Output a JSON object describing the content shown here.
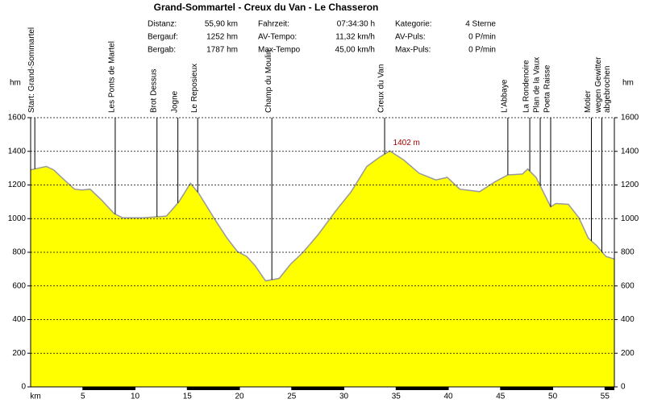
{
  "chart_data": {
    "type": "area",
    "title": "Grand-Sommartel - Creux du Van - Le Chasseron",
    "stats": [
      [
        {
          "label": "Distanz:",
          "value": "55,90 km"
        },
        {
          "label": "Bergauf:",
          "value": "1252 hm"
        },
        {
          "label": "Bergab:",
          "value": "1787 hm"
        }
      ],
      [
        {
          "label": "Fahrzeit:",
          "value": "07:34:30 h"
        },
        {
          "label": "AV-Tempo:",
          "value": "11,32 km/h"
        },
        {
          "label": "Max-Tempo",
          "value": "45,00 km/h"
        }
      ],
      [
        {
          "label": "Kategorie:",
          "value": "4 Sterne"
        },
        {
          "label": "AV-Puls:",
          "value": "0 P/min"
        },
        {
          "label": "Max-Puls:",
          "value": "0 P/min"
        }
      ]
    ],
    "x_label": "km",
    "y_label": "hm",
    "color": "#ffff00",
    "line_color": "#999999",
    "x": [
      0,
      1.5,
      2.2,
      3.4,
      4.2,
      4.9,
      5.7,
      6.8,
      8.0,
      8.8,
      10.7,
      13.0,
      14.2,
      15.3,
      16.1,
      17.6,
      18.8,
      19.8,
      20.7,
      21.5,
      22.5,
      23.8,
      24.9,
      26.1,
      27.6,
      29.2,
      30.7,
      32.2,
      33.4,
      34.4,
      35.7,
      37.2,
      38.8,
      39.9,
      41.1,
      43.0,
      44.5,
      45.7,
      47.1,
      47.6,
      48.4,
      49.8,
      50.3,
      51.5,
      52.5,
      53.4,
      54.2,
      55.1,
      55.9
    ],
    "values": [
      1290,
      1310,
      1290,
      1220,
      1175,
      1170,
      1175,
      1110,
      1030,
      1005,
      1005,
      1015,
      1100,
      1210,
      1150,
      1000,
      885,
      805,
      775,
      720,
      630,
      645,
      730,
      800,
      910,
      1045,
      1160,
      1310,
      1365,
      1402,
      1350,
      1270,
      1230,
      1245,
      1175,
      1160,
      1220,
      1260,
      1265,
      1295,
      1245,
      1070,
      1090,
      1085,
      1005,
      885,
      840,
      775,
      760
    ],
    "xlim": [
      0,
      55.9
    ],
    "ylim": [
      0,
      1600
    ],
    "xticks": [
      5,
      10,
      15,
      20,
      25,
      30,
      35,
      40,
      45,
      50,
      55
    ],
    "yticks": [
      0,
      200,
      400,
      600,
      800,
      1000,
      1200,
      1400,
      1600
    ],
    "grid": true,
    "annotation": {
      "text": "1402 m",
      "x": 34.4,
      "y": 1402
    },
    "waypoints": [
      {
        "label": "Start: Grand-Sommartel",
        "km": 0.4
      },
      {
        "label": "Les Ponts de Martel",
        "km": 8.1
      },
      {
        "label": "Brot Dessus",
        "km": 12.1
      },
      {
        "label": "Jogne",
        "km": 14.1
      },
      {
        "label": "Le Reposieux",
        "km": 16.0
      },
      {
        "label": "Champ du Moulin",
        "km": 23.1
      },
      {
        "label": "Creux du Van",
        "km": 33.9
      },
      {
        "label": "L'Abbaye",
        "km": 45.7
      },
      {
        "label": "La Rondenoire",
        "km": 47.8
      },
      {
        "label": "Plan de la Vaux",
        "km": 48.8
      },
      {
        "label": "Poeta Raisse",
        "km": 49.8
      },
      {
        "label": "Motier",
        "km": 53.7
      },
      {
        "label": [
          "wegen Gewitter",
          "abgebrochen"
        ],
        "km": 54.7
      }
    ]
  }
}
